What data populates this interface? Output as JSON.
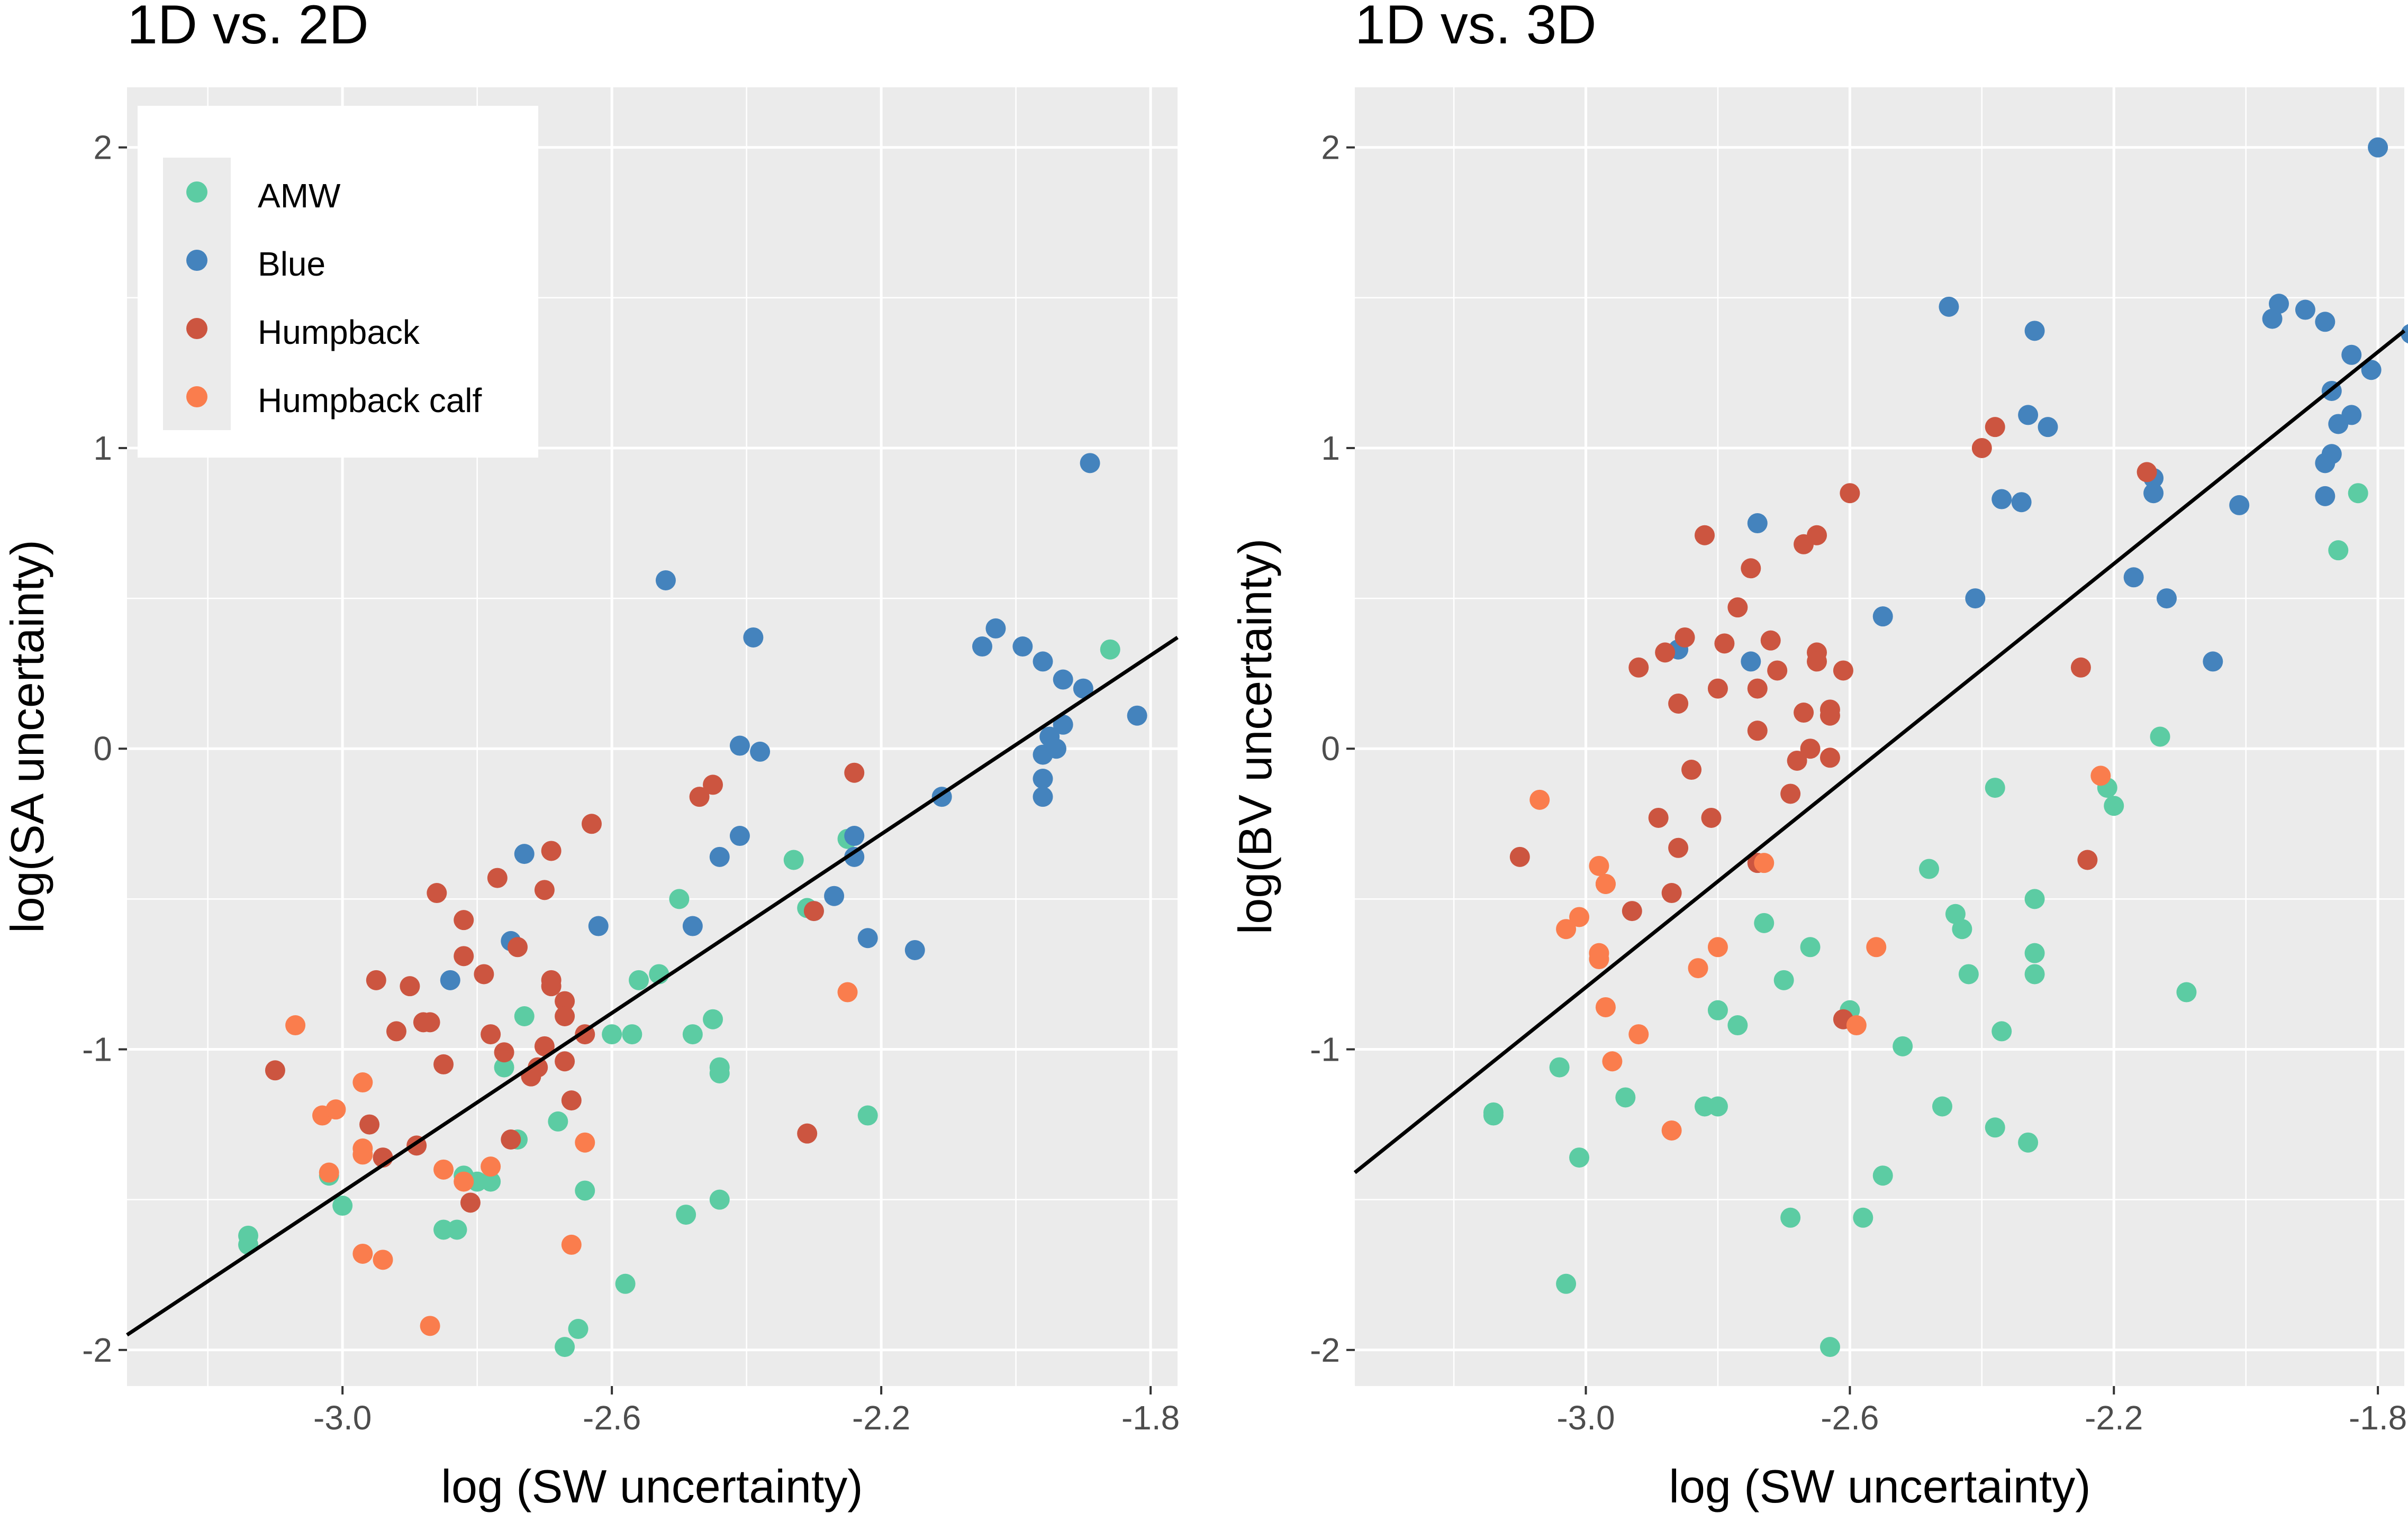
{
  "colors": {
    "AMW": "#5ccca3",
    "Blue": "#4483bd",
    "Humpback": "#cc5540",
    "Humpback calf": "#fa7d4d",
    "panel_bg": "#ebebeb",
    "grid": "#ffffff",
    "fit_line": "#000000"
  },
  "legend": {
    "items": [
      "AMW",
      "Blue",
      "Humpback",
      "Humpback calf"
    ]
  },
  "chart_data": [
    {
      "type": "scatter",
      "title": "1D vs. 2D",
      "xlabel": "log (SW uncertainty)",
      "ylabel": "log(SA uncertainty)",
      "xlim": [
        -3.32,
        -1.76
      ],
      "ylim": [
        -2.12,
        2.2
      ],
      "xticks": [
        -3.0,
        -2.6,
        -2.2,
        -1.8
      ],
      "xtick_labels": [
        "-3.0",
        "-2.6",
        "-2.2",
        "-1.8"
      ],
      "yticks": [
        -2,
        -1,
        0,
        1,
        2
      ],
      "ytick_labels": [
        "-2",
        "-1",
        "0",
        "1",
        "2"
      ],
      "legend_position": "top-left",
      "fit_line": {
        "x": [
          -3.32,
          -1.76
        ],
        "y": [
          -1.95,
          0.37
        ]
      },
      "series": [
        {
          "name": "AMW",
          "points": [
            [
              -3.14,
              -1.65
            ],
            [
              -3.14,
              -1.62
            ],
            [
              -3.02,
              -1.42
            ],
            [
              -3.0,
              -1.52
            ],
            [
              -2.85,
              -1.6
            ],
            [
              -2.83,
              -1.6
            ],
            [
              -2.82,
              -1.42
            ],
            [
              -2.8,
              -1.44
            ],
            [
              -2.78,
              -1.44
            ],
            [
              -2.76,
              -1.06
            ],
            [
              -2.74,
              -1.3
            ],
            [
              -2.73,
              -0.89
            ],
            [
              -2.68,
              -1.24
            ],
            [
              -2.64,
              -1.47
            ],
            [
              -2.6,
              -0.95
            ],
            [
              -2.57,
              -0.95
            ],
            [
              -2.56,
              -0.77
            ],
            [
              -2.53,
              -0.75
            ],
            [
              -2.5,
              -0.5
            ],
            [
              -2.49,
              -1.55
            ],
            [
              -2.48,
              -0.95
            ],
            [
              -2.45,
              -0.9
            ],
            [
              -2.44,
              -1.06
            ],
            [
              -2.44,
              -1.08
            ],
            [
              -2.44,
              -1.5
            ],
            [
              -2.33,
              -0.37
            ],
            [
              -2.31,
              -0.53
            ],
            [
              -2.25,
              -0.3
            ],
            [
              -2.22,
              -1.22
            ],
            [
              -1.86,
              0.33
            ],
            [
              -2.67,
              -1.99
            ],
            [
              -2.65,
              -1.93
            ],
            [
              -2.58,
              -1.78
            ]
          ]
        },
        {
          "name": "Blue",
          "points": [
            [
              -2.84,
              -0.77
            ],
            [
              -2.75,
              -0.64
            ],
            [
              -2.73,
              -0.35
            ],
            [
              -2.62,
              -0.59
            ],
            [
              -2.52,
              0.56
            ],
            [
              -2.48,
              -0.59
            ],
            [
              -2.44,
              -0.36
            ],
            [
              -2.41,
              0.01
            ],
            [
              -2.41,
              -0.29
            ],
            [
              -2.39,
              0.37
            ],
            [
              -2.38,
              -0.01
            ],
            [
              -2.3,
              -0.54
            ],
            [
              -2.27,
              -0.49
            ],
            [
              -2.24,
              -0.29
            ],
            [
              -2.24,
              -0.36
            ],
            [
              -2.22,
              -0.63
            ],
            [
              -2.15,
              -0.67
            ],
            [
              -2.11,
              -0.16
            ],
            [
              -2.05,
              0.34
            ],
            [
              -2.03,
              0.4
            ],
            [
              -1.99,
              0.34
            ],
            [
              -1.96,
              0.29
            ],
            [
              -1.96,
              -0.02
            ],
            [
              -1.96,
              -0.1
            ],
            [
              -1.96,
              -0.16
            ],
            [
              -1.95,
              0.04
            ],
            [
              -1.94,
              0.0
            ],
            [
              -1.93,
              0.23
            ],
            [
              -1.93,
              0.08
            ],
            [
              -1.9,
              0.2
            ],
            [
              -1.89,
              0.95
            ],
            [
              -1.82,
              0.11
            ]
          ]
        },
        {
          "name": "Humpback",
          "points": [
            [
              -3.1,
              -1.07
            ],
            [
              -2.96,
              -1.25
            ],
            [
              -2.95,
              -0.77
            ],
            [
              -2.94,
              -1.36
            ],
            [
              -2.92,
              -0.94
            ],
            [
              -2.9,
              -0.79
            ],
            [
              -2.89,
              -1.32
            ],
            [
              -2.88,
              -0.91
            ],
            [
              -2.87,
              -0.91
            ],
            [
              -2.86,
              -0.48
            ],
            [
              -2.85,
              -1.05
            ],
            [
              -2.82,
              -0.69
            ],
            [
              -2.82,
              -0.57
            ],
            [
              -2.81,
              -1.51
            ],
            [
              -2.79,
              -0.75
            ],
            [
              -2.78,
              -0.95
            ],
            [
              -2.77,
              -0.43
            ],
            [
              -2.76,
              -1.01
            ],
            [
              -2.75,
              -1.3
            ],
            [
              -2.74,
              -0.66
            ],
            [
              -2.72,
              -1.09
            ],
            [
              -2.71,
              -1.06
            ],
            [
              -2.7,
              -0.47
            ],
            [
              -2.7,
              -0.99
            ],
            [
              -2.69,
              -0.34
            ],
            [
              -2.69,
              -0.77
            ],
            [
              -2.69,
              -0.79
            ],
            [
              -2.67,
              -0.84
            ],
            [
              -2.67,
              -0.89
            ],
            [
              -2.67,
              -1.04
            ],
            [
              -2.66,
              -1.17
            ],
            [
              -2.64,
              -0.95
            ],
            [
              -2.63,
              -0.25
            ],
            [
              -2.47,
              -0.16
            ],
            [
              -2.45,
              -0.12
            ],
            [
              -2.3,
              -0.54
            ],
            [
              -2.31,
              -1.28
            ],
            [
              -2.24,
              -0.08
            ]
          ]
        },
        {
          "name": "Humpback calf",
          "points": [
            [
              -3.07,
              -0.92
            ],
            [
              -3.03,
              -1.22
            ],
            [
              -3.01,
              -1.2
            ],
            [
              -3.02,
              -1.41
            ],
            [
              -2.97,
              -1.35
            ],
            [
              -2.97,
              -1.11
            ],
            [
              -2.97,
              -1.33
            ],
            [
              -2.97,
              -1.68
            ],
            [
              -2.94,
              -1.7
            ],
            [
              -2.87,
              -1.92
            ],
            [
              -2.85,
              -1.4
            ],
            [
              -2.82,
              -1.44
            ],
            [
              -2.78,
              -1.39
            ],
            [
              -2.66,
              -1.65
            ],
            [
              -2.64,
              -1.31
            ],
            [
              -2.25,
              -0.81
            ]
          ]
        }
      ]
    },
    {
      "type": "scatter",
      "title": "1D vs. 3D",
      "xlabel": "log (SW uncertainty)",
      "ylabel": "log(BV uncertainty)",
      "xlim": [
        -3.35,
        -1.76
      ],
      "ylim": [
        -2.12,
        2.2
      ],
      "xticks": [
        -3.0,
        -2.6,
        -2.2,
        -1.8
      ],
      "xtick_labels": [
        "-3.0",
        "-2.6",
        "-2.2",
        "-1.8"
      ],
      "yticks": [
        -2,
        -1,
        0,
        1,
        2
      ],
      "ytick_labels": [
        "-2",
        "-1",
        "0",
        "1",
        "2"
      ],
      "fit_line": {
        "x": [
          -3.35,
          -1.76
        ],
        "y": [
          -1.41,
          1.39
        ]
      },
      "series": [
        {
          "name": "AMW",
          "points": [
            [
              -3.14,
              -1.21
            ],
            [
              -3.14,
              -1.22
            ],
            [
              -3.04,
              -1.06
            ],
            [
              -3.03,
              -1.78
            ],
            [
              -3.01,
              -1.36
            ],
            [
              -2.94,
              -1.16
            ],
            [
              -2.82,
              -1.19
            ],
            [
              -2.8,
              -1.19
            ],
            [
              -2.8,
              -0.87
            ],
            [
              -2.77,
              -0.92
            ],
            [
              -2.73,
              -0.58
            ],
            [
              -2.7,
              -0.77
            ],
            [
              -2.69,
              -1.56
            ],
            [
              -2.66,
              -0.66
            ],
            [
              -2.63,
              -1.99
            ],
            [
              -2.6,
              -0.87
            ],
            [
              -2.58,
              -1.56
            ],
            [
              -2.55,
              -1.42
            ],
            [
              -2.52,
              -0.99
            ],
            [
              -2.48,
              -0.4
            ],
            [
              -2.46,
              -1.19
            ],
            [
              -2.44,
              -0.55
            ],
            [
              -2.43,
              -0.6
            ],
            [
              -2.42,
              -0.75
            ],
            [
              -2.38,
              -0.13
            ],
            [
              -2.38,
              -1.26
            ],
            [
              -2.37,
              -0.94
            ],
            [
              -2.33,
              -1.31
            ],
            [
              -2.32,
              -0.5
            ],
            [
              -2.32,
              -0.75
            ],
            [
              -2.32,
              -0.68
            ],
            [
              -2.21,
              -0.13
            ],
            [
              -2.2,
              -0.19
            ],
            [
              -2.13,
              0.04
            ],
            [
              -2.09,
              -0.81
            ],
            [
              -1.86,
              0.66
            ],
            [
              -1.83,
              0.85
            ]
          ]
        },
        {
          "name": "Blue",
          "points": [
            [
              -2.86,
              0.33
            ],
            [
              -2.75,
              0.29
            ],
            [
              -2.74,
              0.75
            ],
            [
              -2.55,
              0.44
            ],
            [
              -2.45,
              1.47
            ],
            [
              -2.41,
              0.5
            ],
            [
              -2.37,
              0.83
            ],
            [
              -2.34,
              0.82
            ],
            [
              -2.33,
              1.11
            ],
            [
              -2.32,
              1.39
            ],
            [
              -2.3,
              1.07
            ],
            [
              -2.17,
              0.57
            ],
            [
              -2.14,
              0.9
            ],
            [
              -2.14,
              0.85
            ],
            [
              -2.12,
              0.5
            ],
            [
              -2.05,
              0.29
            ],
            [
              -2.01,
              0.81
            ],
            [
              -1.96,
              1.43
            ],
            [
              -1.95,
              1.48
            ],
            [
              -1.91,
              1.46
            ],
            [
              -1.88,
              1.42
            ],
            [
              -1.88,
              0.95
            ],
            [
              -1.88,
              0.84
            ],
            [
              -1.87,
              0.98
            ],
            [
              -1.87,
              1.19
            ],
            [
              -1.86,
              1.08
            ],
            [
              -1.84,
              1.11
            ],
            [
              -1.84,
              1.31
            ],
            [
              -1.81,
              1.26
            ],
            [
              -1.8,
              2.0
            ],
            [
              -1.75,
              1.38
            ]
          ]
        },
        {
          "name": "Humpback",
          "points": [
            [
              -3.1,
              -0.36
            ],
            [
              -2.97,
              -0.45
            ],
            [
              -2.93,
              -0.54
            ],
            [
              -2.92,
              0.27
            ],
            [
              -2.89,
              -0.23
            ],
            [
              -2.88,
              0.32
            ],
            [
              -2.87,
              -0.48
            ],
            [
              -2.86,
              0.15
            ],
            [
              -2.86,
              -0.33
            ],
            [
              -2.85,
              0.37
            ],
            [
              -2.84,
              -0.07
            ],
            [
              -2.82,
              0.71
            ],
            [
              -2.81,
              -0.23
            ],
            [
              -2.8,
              0.2
            ],
            [
              -2.79,
              0.35
            ],
            [
              -2.77,
              0.47
            ],
            [
              -2.75,
              0.6
            ],
            [
              -2.74,
              0.06
            ],
            [
              -2.74,
              0.2
            ],
            [
              -2.74,
              -0.38
            ],
            [
              -2.72,
              0.36
            ],
            [
              -2.71,
              0.26
            ],
            [
              -2.69,
              -0.15
            ],
            [
              -2.68,
              -0.04
            ],
            [
              -2.67,
              0.68
            ],
            [
              -2.67,
              0.12
            ],
            [
              -2.66,
              0.0
            ],
            [
              -2.65,
              0.71
            ],
            [
              -2.65,
              0.32
            ],
            [
              -2.65,
              0.29
            ],
            [
              -2.63,
              0.13
            ],
            [
              -2.63,
              0.11
            ],
            [
              -2.63,
              -0.03
            ],
            [
              -2.61,
              -0.9
            ],
            [
              -2.61,
              0.26
            ],
            [
              -2.6,
              0.85
            ],
            [
              -2.4,
              1.0
            ],
            [
              -2.38,
              1.07
            ],
            [
              -2.25,
              0.27
            ],
            [
              -2.24,
              -0.37
            ],
            [
              -2.15,
              0.92
            ]
          ]
        },
        {
          "name": "Humpback calf",
          "points": [
            [
              -3.07,
              -0.17
            ],
            [
              -3.03,
              -0.6
            ],
            [
              -3.01,
              -0.56
            ],
            [
              -2.98,
              -0.39
            ],
            [
              -2.97,
              -0.45
            ],
            [
              -2.98,
              -0.68
            ],
            [
              -2.98,
              -0.7
            ],
            [
              -2.97,
              -0.86
            ],
            [
              -2.96,
              -1.04
            ],
            [
              -2.92,
              -0.95
            ],
            [
              -2.87,
              -1.27
            ],
            [
              -2.83,
              -0.73
            ],
            [
              -2.8,
              -0.66
            ],
            [
              -2.73,
              -0.38
            ],
            [
              -2.59,
              -0.92
            ],
            [
              -2.56,
              -0.66
            ],
            [
              -2.22,
              -0.09
            ]
          ]
        }
      ]
    }
  ]
}
